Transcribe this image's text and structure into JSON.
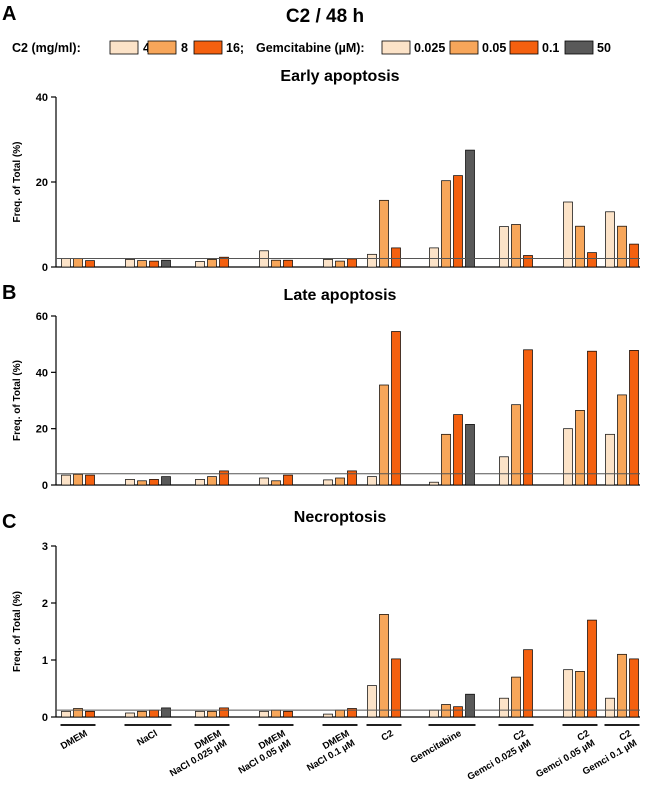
{
  "figure_title": "C2 / 48 h",
  "legend": {
    "c2_label": "C2 (mg/ml):",
    "c2_items": [
      {
        "label": "4",
        "color": "#FCE3C8"
      },
      {
        "label": "8",
        "color": "#F7A65A"
      },
      {
        "label": "16;",
        "color": "#F4600F"
      }
    ],
    "gem_label": "Gemcitabine (µM):",
    "gem_items": [
      {
        "label": "0.025",
        "color": "#FCE3C8"
      },
      {
        "label": "0.05",
        "color": "#F7A65A"
      },
      {
        "label": "0.1",
        "color": "#F4600F"
      },
      {
        "label": "50",
        "color": "#595959"
      }
    ]
  },
  "colors": {
    "light": "#FCE3C8",
    "mid": "#F7A65A",
    "dark": "#F4600F",
    "grey": "#595959",
    "axis": "#000000",
    "reference_line": "#555555"
  },
  "group_labels": [
    [
      "DMEM"
    ],
    [
      "NaCl"
    ],
    [
      "DMEM",
      "NaCl 0.025 µM"
    ],
    [
      "DMEM",
      "NaCl 0.05 µM"
    ],
    [
      "DMEM",
      "NaCl 0.1 µM"
    ],
    [
      "C2"
    ],
    [
      "Gemcitabine"
    ],
    [
      "C2",
      "Gemci 0.025 µM"
    ],
    [
      "C2",
      "Gemci 0.05 µM"
    ],
    [
      "C2",
      "Gemci 0.1 µM"
    ]
  ],
  "chart_data": [
    {
      "panel": "A",
      "type": "bar",
      "title": "Early apoptosis",
      "ylabel": "Freq. of Total (%)",
      "xlabel": "",
      "ylim": [
        0,
        40
      ],
      "yticks": [
        0,
        20,
        40
      ],
      "reference_line": 2.0,
      "groups": [
        {
          "values": [
            2.0,
            2.0,
            1.5
          ],
          "colors": [
            "light",
            "mid",
            "dark"
          ]
        },
        {
          "values": [
            1.8,
            1.5,
            1.4,
            1.6
          ],
          "colors": [
            "light",
            "mid",
            "dark",
            "grey"
          ]
        },
        {
          "values": [
            1.3,
            1.8,
            2.3
          ],
          "colors": [
            "light",
            "mid",
            "dark"
          ]
        },
        {
          "values": [
            3.8,
            1.6,
            1.6
          ],
          "colors": [
            "light",
            "mid",
            "dark"
          ]
        },
        {
          "values": [
            1.8,
            1.4,
            1.9
          ],
          "colors": [
            "light",
            "mid",
            "dark"
          ]
        },
        {
          "values": [
            3.0,
            15.7,
            4.5
          ],
          "colors": [
            "light",
            "mid",
            "dark"
          ]
        },
        {
          "values": [
            4.5,
            20.3,
            21.5,
            27.5
          ],
          "colors": [
            "light",
            "mid",
            "dark",
            "grey"
          ]
        },
        {
          "values": [
            9.5,
            10.0,
            2.7
          ],
          "colors": [
            "light",
            "mid",
            "dark"
          ]
        },
        {
          "values": [
            15.3,
            9.6,
            3.4
          ],
          "colors": [
            "light",
            "mid",
            "dark"
          ]
        },
        {
          "values": [
            13.0,
            9.6,
            5.4
          ],
          "colors": [
            "light",
            "mid",
            "dark"
          ]
        }
      ]
    },
    {
      "panel": "B",
      "type": "bar",
      "title": "Late apoptosis",
      "ylabel": "Freq. of Total (%)",
      "xlabel": "",
      "ylim": [
        0,
        60
      ],
      "yticks": [
        0,
        20,
        40,
        60
      ],
      "reference_line": 4.0,
      "groups": [
        {
          "values": [
            3.5,
            3.8,
            3.5
          ],
          "colors": [
            "light",
            "mid",
            "dark"
          ]
        },
        {
          "values": [
            2.0,
            1.5,
            2.0,
            3.0
          ],
          "colors": [
            "light",
            "mid",
            "dark",
            "grey"
          ]
        },
        {
          "values": [
            2.0,
            3.0,
            5.0
          ],
          "colors": [
            "light",
            "mid",
            "dark"
          ]
        },
        {
          "values": [
            2.5,
            1.5,
            3.5
          ],
          "colors": [
            "light",
            "mid",
            "dark"
          ]
        },
        {
          "values": [
            1.8,
            2.5,
            5.0
          ],
          "colors": [
            "light",
            "mid",
            "dark"
          ]
        },
        {
          "values": [
            3.0,
            35.5,
            54.5
          ],
          "colors": [
            "light",
            "mid",
            "dark"
          ]
        },
        {
          "values": [
            1.0,
            18.0,
            25.0,
            21.5
          ],
          "colors": [
            "light",
            "mid",
            "dark",
            "grey"
          ]
        },
        {
          "values": [
            10.0,
            28.5,
            48.0
          ],
          "colors": [
            "light",
            "mid",
            "dark"
          ]
        },
        {
          "values": [
            20.0,
            26.5,
            47.5
          ],
          "colors": [
            "light",
            "mid",
            "dark"
          ]
        },
        {
          "values": [
            18.0,
            32.0,
            47.8
          ],
          "colors": [
            "light",
            "mid",
            "dark"
          ]
        }
      ]
    },
    {
      "panel": "C",
      "type": "bar",
      "title": "Necroptosis",
      "ylabel": "Freq. of Total (%)",
      "xlabel": "",
      "ylim": [
        0,
        3
      ],
      "yticks": [
        0,
        1,
        2,
        3
      ],
      "reference_line": 0.12,
      "groups": [
        {
          "values": [
            0.1,
            0.15,
            0.1
          ],
          "colors": [
            "light",
            "mid",
            "dark"
          ]
        },
        {
          "values": [
            0.07,
            0.1,
            0.12,
            0.16
          ],
          "colors": [
            "light",
            "mid",
            "dark",
            "grey"
          ]
        },
        {
          "values": [
            0.1,
            0.1,
            0.16
          ],
          "colors": [
            "light",
            "mid",
            "dark"
          ]
        },
        {
          "values": [
            0.1,
            0.12,
            0.1
          ],
          "colors": [
            "light",
            "mid",
            "dark"
          ]
        },
        {
          "values": [
            0.05,
            0.12,
            0.15
          ],
          "colors": [
            "light",
            "mid",
            "dark"
          ]
        },
        {
          "values": [
            0.55,
            1.8,
            1.02
          ],
          "colors": [
            "light",
            "mid",
            "dark"
          ]
        },
        {
          "values": [
            0.12,
            0.22,
            0.18,
            0.4
          ],
          "colors": [
            "light",
            "mid",
            "dark",
            "grey"
          ]
        },
        {
          "values": [
            0.33,
            0.7,
            1.18
          ],
          "colors": [
            "light",
            "mid",
            "dark"
          ]
        },
        {
          "values": [
            0.83,
            0.8,
            1.7
          ],
          "colors": [
            "light",
            "mid",
            "dark"
          ]
        },
        {
          "values": [
            0.33,
            1.1,
            1.02
          ],
          "colors": [
            "light",
            "mid",
            "dark"
          ]
        }
      ]
    }
  ]
}
